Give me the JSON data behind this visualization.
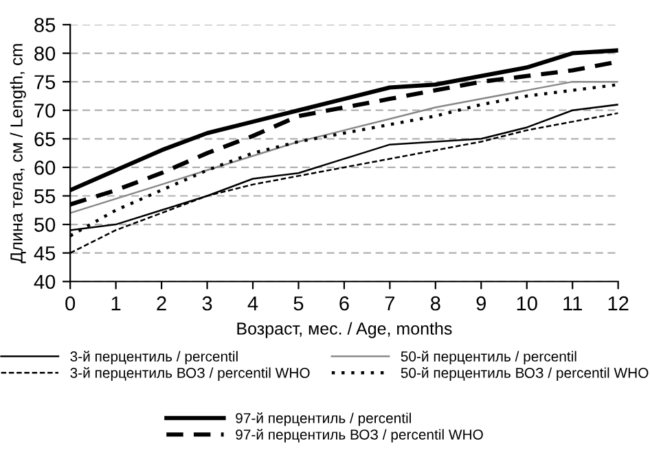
{
  "chart_data": {
    "type": "line",
    "xlabel": "Возраст, мес. / Age, months",
    "ylabel": "Длина тела, см / Length, cm",
    "x": [
      0,
      1,
      2,
      3,
      4,
      5,
      6,
      7,
      8,
      9,
      10,
      11,
      12
    ],
    "xlim": [
      0,
      12
    ],
    "xticks": [
      0,
      1,
      2,
      3,
      4,
      5,
      6,
      7,
      8,
      9,
      10,
      11,
      12
    ],
    "ylim": [
      40,
      85
    ],
    "yticks": [
      40,
      45,
      50,
      55,
      60,
      65,
      70,
      75,
      80,
      85
    ],
    "grid": "y",
    "legend": "bottom",
    "marker": "none",
    "series": [
      {
        "name": "3-й перцентиль / percentil",
        "color": "#000000",
        "line_style": "solid",
        "values": [
          49,
          50,
          52.5,
          55,
          58,
          59,
          61.5,
          64,
          64.5,
          65,
          67,
          70,
          71
        ]
      },
      {
        "name": "3-й перцентиль ВОЗ / percentil WHO",
        "color": "#000000",
        "line_style": "dashed",
        "values": [
          45,
          49,
          52,
          55,
          57,
          58.5,
          60,
          61.5,
          63,
          64.5,
          66.5,
          68,
          69.5
        ]
      },
      {
        "name": "50-й перцентиль / percentil",
        "color": "#888888",
        "line_style": "solid",
        "values": [
          52,
          54.5,
          57,
          59.5,
          62,
          64.5,
          66.5,
          68.5,
          70.5,
          72,
          73.5,
          75,
          75
        ]
      },
      {
        "name": "50-й перцентиль ВОЗ / percentil WHO",
        "color": "#000000",
        "line_style": "dotted",
        "values": [
          48,
          52.5,
          56,
          59.5,
          62.5,
          64.5,
          66,
          67.5,
          69,
          71,
          72.5,
          73.5,
          74.5
        ]
      },
      {
        "name": "97-й перцентиль / percentil",
        "color": "#000000",
        "line_style": "solid",
        "values": [
          56,
          59.5,
          63,
          66,
          68,
          70,
          72,
          74,
          74.5,
          76,
          77.5,
          80,
          80.5
        ]
      },
      {
        "name": "97-й перцентиль ВОЗ / percentil WHO",
        "color": "#000000",
        "line_style": "dashed",
        "values": [
          53.5,
          56,
          59,
          62.5,
          65.5,
          69,
          70.5,
          72,
          73.5,
          75,
          76,
          77,
          78.5
        ]
      }
    ]
  }
}
